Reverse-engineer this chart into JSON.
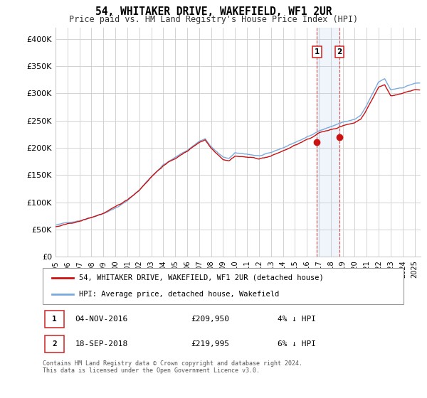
{
  "title": "54, WHITAKER DRIVE, WAKEFIELD, WF1 2UR",
  "subtitle": "Price paid vs. HM Land Registry's House Price Index (HPI)",
  "ylim": [
    0,
    420000
  ],
  "yticks": [
    0,
    50000,
    100000,
    150000,
    200000,
    250000,
    300000,
    350000,
    400000
  ],
  "ytick_labels": [
    "£0",
    "£50K",
    "£100K",
    "£150K",
    "£200K",
    "£250K",
    "£300K",
    "£350K",
    "£400K"
  ],
  "xlim_start": 1995.0,
  "xlim_end": 2025.5,
  "hpi_color": "#7aaadd",
  "price_color": "#cc1111",
  "grid_color": "#cccccc",
  "legend_label_price": "54, WHITAKER DRIVE, WAKEFIELD, WF1 2UR (detached house)",
  "legend_label_hpi": "HPI: Average price, detached house, Wakefield",
  "sale1_date": "04-NOV-2016",
  "sale1_price": 209950,
  "sale1_label": "£209,950",
  "sale1_pct": "4% ↓ HPI",
  "sale1_year": 2016.84,
  "sale2_date": "18-SEP-2018",
  "sale2_price": 219995,
  "sale2_label": "£219,995",
  "sale2_pct": "6% ↓ HPI",
  "sale2_year": 2018.71,
  "box_color": "#cc2222",
  "span_color": "#aaccee",
  "footer": "Contains HM Land Registry data © Crown copyright and database right 2024.\nThis data is licensed under the Open Government Licence v3.0.",
  "xtick_years": [
    1995,
    1996,
    1997,
    1998,
    1999,
    2000,
    2001,
    2002,
    2003,
    2004,
    2005,
    2006,
    2007,
    2008,
    2009,
    2010,
    2011,
    2012,
    2013,
    2014,
    2015,
    2016,
    2017,
    2018,
    2019,
    2020,
    2021,
    2022,
    2023,
    2024,
    2025
  ]
}
